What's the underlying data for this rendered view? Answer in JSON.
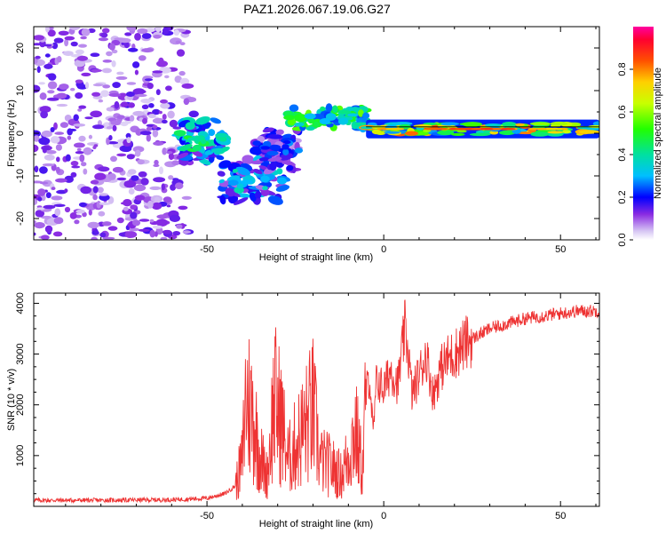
{
  "title": "PAZ1.2026.067.19.06.G27",
  "colors": {
    "snr_line": "#ee3333",
    "axis": "#000000",
    "tick": "#000000"
  },
  "chart_data": [
    {
      "type": "heatmap",
      "name": "spectrogram",
      "xlabel": "Height of straight line (km)",
      "ylabel": "Frequency (Hz)",
      "xlim": [
        -99,
        61
      ],
      "ylim": [
        -25,
        25
      ],
      "xticks": [
        "-50",
        "0",
        "50"
      ],
      "xtick_values": [
        -50,
        0,
        50
      ],
      "yticks": [
        "20",
        "10",
        "0",
        "-10",
        "-20"
      ],
      "ytick_values": [
        20,
        10,
        0,
        -10,
        -20
      ],
      "colorbar": {
        "label": "Normalized spectral amplitude",
        "range": [
          0,
          1
        ],
        "ticks": [
          "0.0",
          "0.2",
          "0.4",
          "0.6",
          "0.8"
        ],
        "tick_values": [
          0,
          0.2,
          0.4,
          0.6,
          0.8
        ]
      },
      "features": [
        {
          "x_range": [
            -99,
            -52
          ],
          "freq_range": [
            -25,
            25
          ],
          "amplitude": 0.12,
          "kind": "diffuse noise"
        },
        {
          "x_range": [
            -58,
            -45
          ],
          "freq_center": -2,
          "amplitude": 0.35,
          "kind": "blobs"
        },
        {
          "x_range": [
            -46,
            -28
          ],
          "freq_center": -11,
          "amplitude": 0.28,
          "kind": "blobs"
        },
        {
          "x_range": [
            -36,
            -24
          ],
          "freq_center": -4,
          "amplitude": 0.2,
          "kind": "blobs"
        },
        {
          "x_range": [
            -28,
            -5
          ],
          "freq_center": 3.5,
          "amplitude": 0.45,
          "kind": "streak"
        },
        {
          "x_range": [
            -5,
            61
          ],
          "freq_center": 1,
          "amplitude": 0.85,
          "kind": "narrow tone"
        }
      ]
    },
    {
      "type": "line",
      "name": "snr",
      "xlabel": "Height of straight line (km)",
      "ylabel": "SNR (10 * v/v)",
      "xlim": [
        -99,
        61
      ],
      "ylim": [
        0,
        4200
      ],
      "xticks": [
        "-50",
        "0",
        "50"
      ],
      "xtick_values": [
        -50,
        0,
        50
      ],
      "yticks": [
        "4000",
        "3000",
        "2000",
        "1000"
      ],
      "ytick_values": [
        4000,
        3000,
        2000,
        1000
      ],
      "series": [
        {
          "name": "SNR",
          "x": [
            -99,
            -80,
            -60,
            -50,
            -45,
            -42,
            -40,
            -39,
            -37,
            -35,
            -33,
            -31,
            -29,
            -27,
            -25,
            -22,
            -20,
            -18,
            -15,
            -12,
            -10,
            -8,
            -6,
            -5,
            -4,
            -3,
            -2,
            0,
            2,
            4,
            6,
            7,
            8,
            10,
            12,
            13,
            14,
            16,
            18,
            20,
            22,
            25,
            30,
            35,
            40,
            45,
            50,
            55,
            61
          ],
          "y": [
            120,
            120,
            130,
            160,
            250,
            400,
            900,
            2200,
            1800,
            1000,
            600,
            2100,
            1700,
            900,
            1200,
            1600,
            1900,
            900,
            800,
            600,
            1000,
            1500,
            700,
            2200,
            2600,
            1400,
            2500,
            2300,
            2700,
            2400,
            3500,
            3000,
            2200,
            2600,
            3000,
            2600,
            2200,
            2700,
            2900,
            3000,
            3150,
            3300,
            3500,
            3600,
            3700,
            3750,
            3800,
            3850,
            3850
          ]
        }
      ]
    }
  ]
}
